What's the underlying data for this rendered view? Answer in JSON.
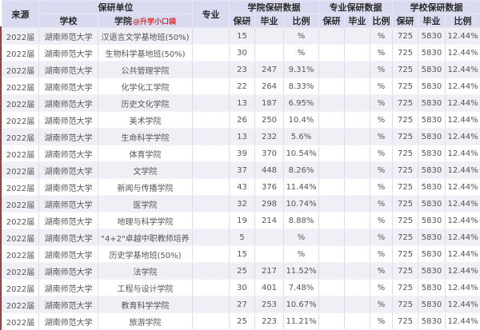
{
  "table": {
    "headers": {
      "source": "来源",
      "unit": "保研单位",
      "school": "学校",
      "college": "学院",
      "college_watermark": "@升学小口袋",
      "major": "专业",
      "college_data": "学院保研数据",
      "major_data": "专业保研数据",
      "school_data": "学校保研数据",
      "recommend": "保研",
      "graduate": "毕业",
      "ratio": "比例"
    },
    "rows": [
      {
        "source": "2022届",
        "school": "湖南师范大学",
        "college": "汉语言文学基地班(50%)",
        "major": "",
        "c_by": "15",
        "c_bi": "",
        "c_bl": "%",
        "m_by": "",
        "m_bi": "",
        "m_bl": "%",
        "s_by": "725",
        "s_bi": "5830",
        "s_bl": "12.44%"
      },
      {
        "source": "2022届",
        "school": "湖南师范大学",
        "college": "生物科学基地班(50%)",
        "major": "",
        "c_by": "30",
        "c_bi": "",
        "c_bl": "%",
        "m_by": "",
        "m_bi": "",
        "m_bl": "%",
        "s_by": "725",
        "s_bi": "5830",
        "s_bl": "12.44%"
      },
      {
        "source": "2022届",
        "school": "湖南师范大学",
        "college": "公共管理学院",
        "major": "",
        "c_by": "23",
        "c_bi": "247",
        "c_bl": "9.31%",
        "m_by": "",
        "m_bi": "",
        "m_bl": "%",
        "s_by": "725",
        "s_bi": "5830",
        "s_bl": "12.44%"
      },
      {
        "source": "2022届",
        "school": "湖南师范大学",
        "college": "化学化工学院",
        "major": "",
        "c_by": "22",
        "c_bi": "264",
        "c_bl": "8.33%",
        "m_by": "",
        "m_bi": "",
        "m_bl": "%",
        "s_by": "725",
        "s_bi": "5830",
        "s_bl": "12.44%"
      },
      {
        "source": "2022届",
        "school": "湖南师范大学",
        "college": "历史文化学院",
        "major": "",
        "c_by": "13",
        "c_bi": "187",
        "c_bl": "6.95%",
        "m_by": "",
        "m_bi": "",
        "m_bl": "%",
        "s_by": "725",
        "s_bi": "5830",
        "s_bl": "12.44%"
      },
      {
        "source": "2022届",
        "school": "湖南师范大学",
        "college": "美术学院",
        "major": "",
        "c_by": "26",
        "c_bi": "250",
        "c_bl": "10.4%",
        "m_by": "",
        "m_bi": "",
        "m_bl": "%",
        "s_by": "725",
        "s_bi": "5830",
        "s_bl": "12.44%"
      },
      {
        "source": "2022届",
        "school": "湖南师范大学",
        "college": "生命科学学院",
        "major": "",
        "c_by": "13",
        "c_bi": "232",
        "c_bl": "5.6%",
        "m_by": "",
        "m_bi": "",
        "m_bl": "%",
        "s_by": "725",
        "s_bi": "5830",
        "s_bl": "12.44%"
      },
      {
        "source": "2022届",
        "school": "湖南师范大学",
        "college": "体育学院",
        "major": "",
        "c_by": "39",
        "c_bi": "370",
        "c_bl": "10.54%",
        "m_by": "",
        "m_bi": "",
        "m_bl": "%",
        "s_by": "725",
        "s_bi": "5830",
        "s_bl": "12.44%"
      },
      {
        "source": "2022届",
        "school": "湖南师范大学",
        "college": "文学院",
        "major": "",
        "c_by": "37",
        "c_bi": "448",
        "c_bl": "8.26%",
        "m_by": "",
        "m_bi": "",
        "m_bl": "%",
        "s_by": "725",
        "s_bi": "5830",
        "s_bl": "12.44%"
      },
      {
        "source": "2022届",
        "school": "湖南师范大学",
        "college": "新闻与传播学院",
        "major": "",
        "c_by": "43",
        "c_bi": "376",
        "c_bl": "11.44%",
        "m_by": "",
        "m_bi": "",
        "m_bl": "%",
        "s_by": "725",
        "s_bi": "5830",
        "s_bl": "12.44%"
      },
      {
        "source": "2022届",
        "school": "湖南师范大学",
        "college": "医学院",
        "major": "",
        "c_by": "32",
        "c_bi": "298",
        "c_bl": "10.74%",
        "m_by": "",
        "m_bi": "",
        "m_bl": "%",
        "s_by": "725",
        "s_bi": "5830",
        "s_bl": "12.44%"
      },
      {
        "source": "2022届",
        "school": "湖南师范大学",
        "college": "地理与科学学院",
        "major": "",
        "c_by": "19",
        "c_bi": "214",
        "c_bl": "8.88%",
        "m_by": "",
        "m_bi": "",
        "m_bl": "%",
        "s_by": "725",
        "s_bi": "5830",
        "s_bl": "12.44%"
      },
      {
        "source": "2022届",
        "school": "湖南师范大学",
        "college": "\"4+2\"卓越中职教师培养",
        "major": "",
        "c_by": "5",
        "c_bi": "",
        "c_bl": "%",
        "m_by": "",
        "m_bi": "",
        "m_bl": "%",
        "s_by": "725",
        "s_bi": "5830",
        "s_bl": "12.44%"
      },
      {
        "source": "2022届",
        "school": "湖南师范大学",
        "college": "历史学基地班(50%)",
        "major": "",
        "c_by": "15",
        "c_bi": "",
        "c_bl": "%",
        "m_by": "",
        "m_bi": "",
        "m_bl": "%",
        "s_by": "725",
        "s_bi": "5830",
        "s_bl": "12.44%"
      },
      {
        "source": "2022届",
        "school": "湖南师范大学",
        "college": "法学院",
        "major": "",
        "c_by": "25",
        "c_bi": "217",
        "c_bl": "11.52%",
        "m_by": "",
        "m_bi": "",
        "m_bl": "%",
        "s_by": "725",
        "s_bi": "5830",
        "s_bl": "12.44%"
      },
      {
        "source": "2022届",
        "school": "湖南师范大学",
        "college": "工程与设计学院",
        "major": "",
        "c_by": "30",
        "c_bi": "401",
        "c_bl": "7.48%",
        "m_by": "",
        "m_bi": "",
        "m_bl": "%",
        "s_by": "725",
        "s_bi": "5830",
        "s_bl": "12.44%"
      },
      {
        "source": "2022届",
        "school": "湖南师范大学",
        "college": "教育科学学院",
        "major": "",
        "c_by": "27",
        "c_bi": "253",
        "c_bl": "10.67%",
        "m_by": "",
        "m_bi": "",
        "m_bl": "%",
        "s_by": "725",
        "s_bi": "5830",
        "s_bl": "12.44%"
      },
      {
        "source": "2022届",
        "school": "湖南师范大学",
        "college": "旅游学院",
        "major": "",
        "c_by": "25",
        "c_bi": "223",
        "c_bl": "11.21%",
        "m_by": "",
        "m_bi": "",
        "m_bl": "%",
        "s_by": "725",
        "s_bi": "5830",
        "s_bl": "12.44%"
      }
    ]
  },
  "colors": {
    "header_bg": "#dadaf0",
    "row_stripe": "#efeff6",
    "watermark_red": "#e02a2a",
    "left_accent": "#8a4a44"
  }
}
